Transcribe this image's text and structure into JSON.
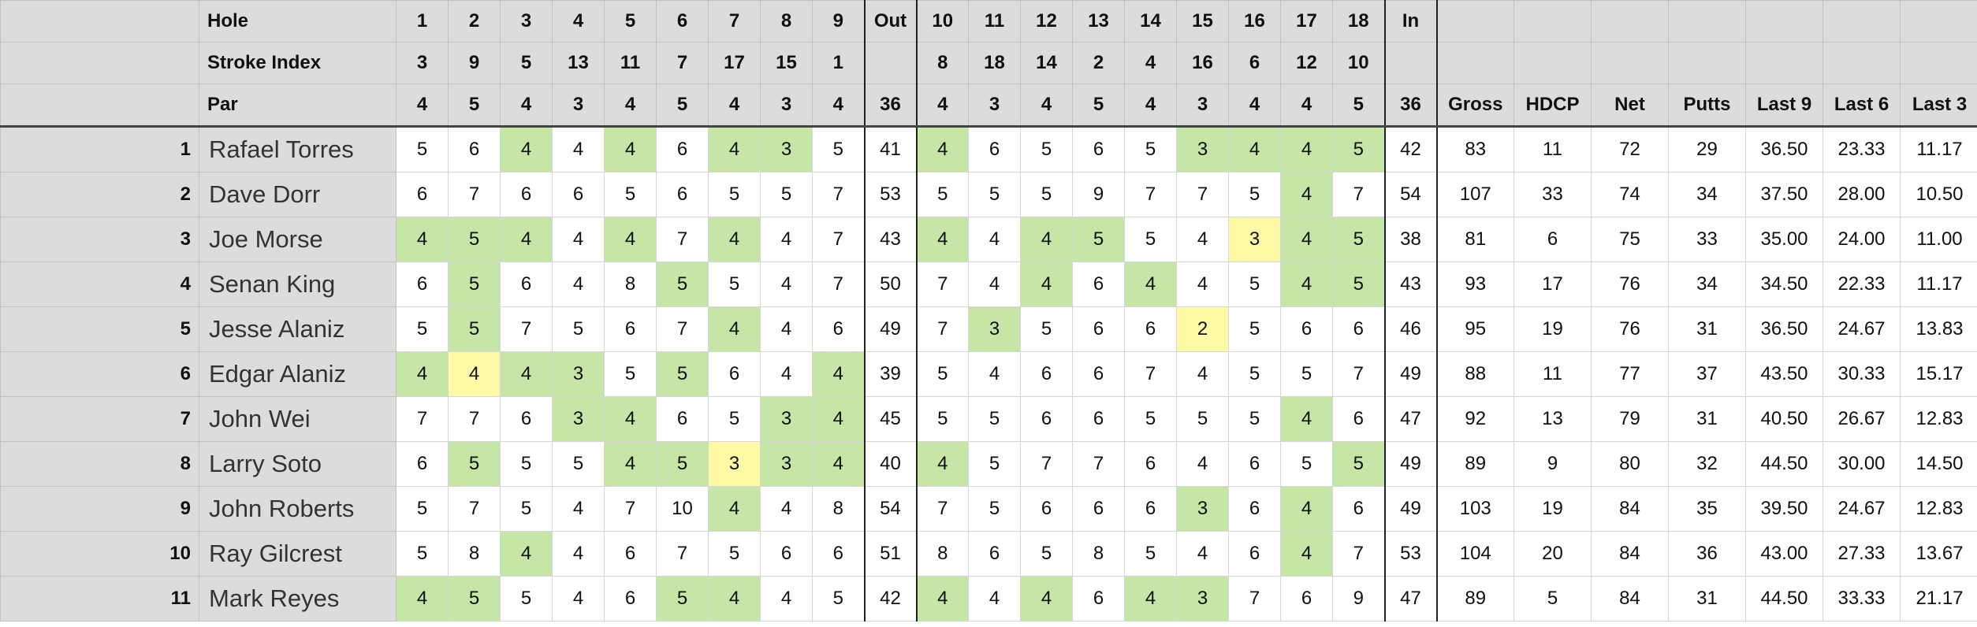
{
  "header": {
    "hole_label": "Hole",
    "stroke_index_label": "Stroke Index",
    "par_label": "Par",
    "holes": [
      "1",
      "2",
      "3",
      "4",
      "5",
      "6",
      "7",
      "8",
      "9",
      "Out",
      "10",
      "11",
      "12",
      "13",
      "14",
      "15",
      "16",
      "17",
      "18",
      "In"
    ],
    "stroke_index": [
      "3",
      "9",
      "5",
      "13",
      "11",
      "7",
      "17",
      "15",
      "1",
      "",
      "8",
      "18",
      "14",
      "2",
      "4",
      "16",
      "6",
      "12",
      "10",
      ""
    ],
    "par": [
      "4",
      "5",
      "4",
      "3",
      "4",
      "5",
      "4",
      "3",
      "4",
      "36",
      "4",
      "3",
      "4",
      "5",
      "4",
      "3",
      "4",
      "4",
      "5",
      "36"
    ],
    "stat_columns": [
      "Gross",
      "HDCP",
      "Net",
      "Putts",
      "Last 9",
      "Last 6",
      "Last 3"
    ]
  },
  "colors": {
    "birdie": "#c5e6a6",
    "eagle": "#fdf9a6",
    "header_bg": "#dcdcdc"
  },
  "players": [
    {
      "rank": "1",
      "name": "Rafael Torres",
      "scores": [
        "5",
        "6",
        "4",
        "4",
        "4",
        "6",
        "4",
        "3",
        "5",
        "41",
        "4",
        "6",
        "5",
        "6",
        "5",
        "3",
        "4",
        "4",
        "5",
        "42"
      ],
      "marks": [
        "",
        "",
        "g",
        "",
        "g",
        "",
        "g",
        "g",
        "",
        "",
        "g",
        "",
        "",
        "",
        "",
        "g",
        "g",
        "g",
        "g",
        ""
      ],
      "stats": [
        "83",
        "11",
        "72",
        "29",
        "36.50",
        "23.33",
        "11.17"
      ]
    },
    {
      "rank": "2",
      "name": "Dave Dorr",
      "scores": [
        "6",
        "7",
        "6",
        "6",
        "5",
        "6",
        "5",
        "5",
        "7",
        "53",
        "5",
        "5",
        "5",
        "9",
        "7",
        "7",
        "5",
        "4",
        "7",
        "54"
      ],
      "marks": [
        "",
        "",
        "",
        "",
        "",
        "",
        "",
        "",
        "",
        "",
        "",
        "",
        "",
        "",
        "",
        "",
        "",
        "g",
        "",
        ""
      ],
      "stats": [
        "107",
        "33",
        "74",
        "34",
        "37.50",
        "28.00",
        "10.50"
      ]
    },
    {
      "rank": "3",
      "name": "Joe Morse",
      "scores": [
        "4",
        "5",
        "4",
        "4",
        "4",
        "7",
        "4",
        "4",
        "7",
        "43",
        "4",
        "4",
        "4",
        "5",
        "5",
        "4",
        "3",
        "4",
        "5",
        "38"
      ],
      "marks": [
        "g",
        "g",
        "g",
        "",
        "g",
        "",
        "g",
        "",
        "",
        "",
        "g",
        "",
        "g",
        "g",
        "",
        "",
        "y",
        "g",
        "g",
        ""
      ],
      "stats": [
        "81",
        "6",
        "75",
        "33",
        "35.00",
        "24.00",
        "11.00"
      ]
    },
    {
      "rank": "4",
      "name": "Senan King",
      "scores": [
        "6",
        "5",
        "6",
        "4",
        "8",
        "5",
        "5",
        "4",
        "7",
        "50",
        "7",
        "4",
        "4",
        "6",
        "4",
        "4",
        "5",
        "4",
        "5",
        "43"
      ],
      "marks": [
        "",
        "g",
        "",
        "",
        "",
        "g",
        "",
        "",
        "",
        "",
        "",
        "",
        "g",
        "",
        "g",
        "",
        "",
        "g",
        "g",
        ""
      ],
      "stats": [
        "93",
        "17",
        "76",
        "34",
        "34.50",
        "22.33",
        "11.17"
      ]
    },
    {
      "rank": "5",
      "name": "Jesse Alaniz",
      "scores": [
        "5",
        "5",
        "7",
        "5",
        "6",
        "7",
        "4",
        "4",
        "6",
        "49",
        "7",
        "3",
        "5",
        "6",
        "6",
        "2",
        "5",
        "6",
        "6",
        "46"
      ],
      "marks": [
        "",
        "g",
        "",
        "",
        "",
        "",
        "g",
        "",
        "",
        "",
        "",
        "g",
        "",
        "",
        "",
        "y",
        "",
        "",
        "",
        ""
      ],
      "stats": [
        "95",
        "19",
        "76",
        "31",
        "36.50",
        "24.67",
        "13.83"
      ]
    },
    {
      "rank": "6",
      "name": "Edgar Alaniz",
      "scores": [
        "4",
        "4",
        "4",
        "3",
        "5",
        "5",
        "6",
        "4",
        "4",
        "39",
        "5",
        "4",
        "6",
        "6",
        "7",
        "4",
        "5",
        "5",
        "7",
        "49"
      ],
      "marks": [
        "g",
        "y",
        "g",
        "g",
        "",
        "g",
        "",
        "",
        "g",
        "",
        "",
        "",
        "",
        "",
        "",
        "",
        "",
        "",
        "",
        ""
      ],
      "stats": [
        "88",
        "11",
        "77",
        "37",
        "43.50",
        "30.33",
        "15.17"
      ]
    },
    {
      "rank": "7",
      "name": "John Wei",
      "scores": [
        "7",
        "7",
        "6",
        "3",
        "4",
        "6",
        "5",
        "3",
        "4",
        "45",
        "5",
        "5",
        "6",
        "6",
        "5",
        "5",
        "5",
        "4",
        "6",
        "47"
      ],
      "marks": [
        "",
        "",
        "",
        "g",
        "g",
        "",
        "",
        "g",
        "g",
        "",
        "",
        "",
        "",
        "",
        "",
        "",
        "",
        "g",
        "",
        ""
      ],
      "stats": [
        "92",
        "13",
        "79",
        "31",
        "40.50",
        "26.67",
        "12.83"
      ]
    },
    {
      "rank": "8",
      "name": "Larry Soto",
      "scores": [
        "6",
        "5",
        "5",
        "5",
        "4",
        "5",
        "3",
        "3",
        "4",
        "40",
        "4",
        "5",
        "7",
        "7",
        "6",
        "4",
        "6",
        "5",
        "5",
        "49"
      ],
      "marks": [
        "",
        "g",
        "",
        "",
        "g",
        "g",
        "y",
        "g",
        "g",
        "",
        "g",
        "",
        "",
        "",
        "",
        "",
        "",
        "",
        "g",
        ""
      ],
      "stats": [
        "89",
        "9",
        "80",
        "32",
        "44.50",
        "30.00",
        "14.50"
      ]
    },
    {
      "rank": "9",
      "name": "John Roberts",
      "scores": [
        "5",
        "7",
        "5",
        "4",
        "7",
        "10",
        "4",
        "4",
        "8",
        "54",
        "7",
        "5",
        "6",
        "6",
        "6",
        "3",
        "6",
        "4",
        "6",
        "49"
      ],
      "marks": [
        "",
        "",
        "",
        "",
        "",
        "",
        "g",
        "",
        "",
        "",
        "",
        "",
        "",
        "",
        "",
        "g",
        "",
        "g",
        "",
        ""
      ],
      "stats": [
        "103",
        "19",
        "84",
        "35",
        "39.50",
        "24.67",
        "12.83"
      ]
    },
    {
      "rank": "10",
      "name": "Ray Gilcrest",
      "scores": [
        "5",
        "8",
        "4",
        "4",
        "6",
        "7",
        "5",
        "6",
        "6",
        "51",
        "8",
        "6",
        "5",
        "8",
        "5",
        "4",
        "6",
        "4",
        "7",
        "53"
      ],
      "marks": [
        "",
        "",
        "g",
        "",
        "",
        "",
        "",
        "",
        "",
        "",
        "",
        "",
        "",
        "",
        "",
        "",
        "",
        "g",
        "",
        ""
      ],
      "stats": [
        "104",
        "20",
        "84",
        "36",
        "43.00",
        "27.33",
        "13.67"
      ]
    },
    {
      "rank": "11",
      "name": "Mark Reyes",
      "scores": [
        "4",
        "5",
        "5",
        "4",
        "6",
        "5",
        "4",
        "4",
        "5",
        "42",
        "4",
        "4",
        "4",
        "6",
        "4",
        "3",
        "7",
        "6",
        "9",
        "47"
      ],
      "marks": [
        "g",
        "g",
        "",
        "",
        "",
        "g",
        "g",
        "",
        "",
        "",
        "g",
        "",
        "g",
        "",
        "g",
        "g",
        "",
        "",
        "",
        ""
      ],
      "stats": [
        "89",
        "5",
        "84",
        "31",
        "44.50",
        "33.33",
        "21.17"
      ]
    }
  ]
}
